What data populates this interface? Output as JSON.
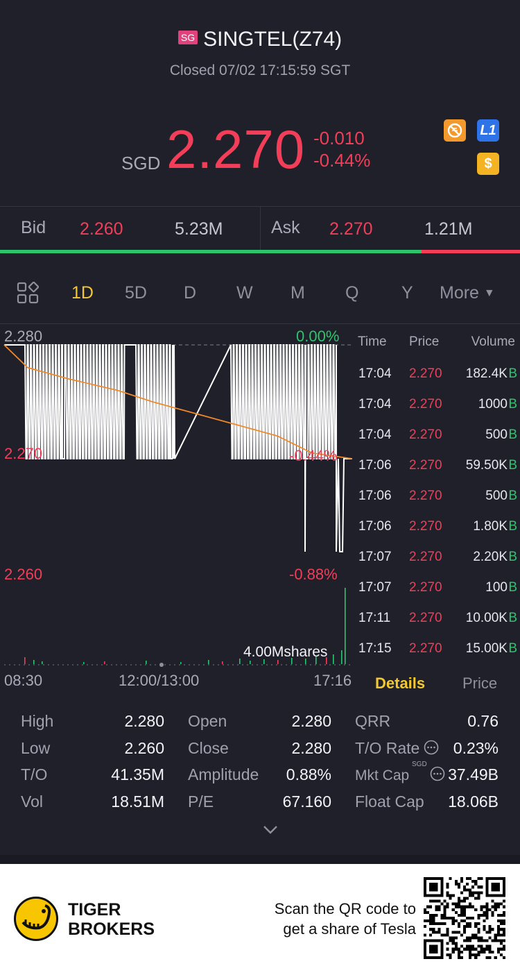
{
  "header": {
    "market_badge": "SG",
    "title": "SINGTEL(Z74)",
    "status": "Closed 07/02 17:15:59 SGT"
  },
  "quote": {
    "currency": "SGD",
    "last_price": "2.270",
    "change_abs": "-0.010",
    "change_pct": "-0.44%",
    "icons": [
      "no-trading-icon",
      "level1-icon",
      "dollar-icon"
    ]
  },
  "bid_ask": {
    "bid_label": "Bid",
    "bid_price": "2.260",
    "bid_volume": "5.23M",
    "ask_label": "Ask",
    "ask_price": "2.270",
    "ask_volume": "1.21M",
    "bid_share": 0.81
  },
  "tabs": {
    "items": [
      "1D",
      "5D",
      "D",
      "W",
      "M",
      "Q",
      "Y"
    ],
    "more": "More",
    "active": "1D"
  },
  "chart": {
    "price_labels": {
      "top": "2.280",
      "mid": "2.270",
      "bottom": "2.260"
    },
    "pct_labels": {
      "top": "0.00%",
      "mid": "-0.44%",
      "bottom": "-0.88%"
    },
    "volume_label": "4.00Mshares",
    "time_labels": {
      "start": "08:30",
      "mid": "12:00/13:00",
      "end": "17:16"
    }
  },
  "chart_data": {
    "type": "line",
    "title": "",
    "ylim": [
      2.26,
      2.28
    ],
    "series": [
      {
        "name": "",
        "values": [
          2.28,
          2.278,
          2.277,
          2.276,
          2.275,
          2.274,
          2.273,
          2.272,
          2.2705,
          2.27
        ]
      }
    ]
  },
  "trades": {
    "headers": {
      "time": "Time",
      "price": "Price",
      "volume": "Volume"
    },
    "rows": [
      {
        "time": "17:04",
        "price": "2.270",
        "volume": "182.4K",
        "side": "B"
      },
      {
        "time": "17:04",
        "price": "2.270",
        "volume": "1000",
        "side": "B"
      },
      {
        "time": "17:04",
        "price": "2.270",
        "volume": "500",
        "side": "B"
      },
      {
        "time": "17:06",
        "price": "2.270",
        "volume": "59.50K",
        "side": "B"
      },
      {
        "time": "17:06",
        "price": "2.270",
        "volume": "500",
        "side": "B"
      },
      {
        "time": "17:06",
        "price": "2.270",
        "volume": "1.80K",
        "side": "B"
      },
      {
        "time": "17:07",
        "price": "2.270",
        "volume": "2.20K",
        "side": "B"
      },
      {
        "time": "17:07",
        "price": "2.270",
        "volume": "100",
        "side": "B"
      },
      {
        "time": "17:11",
        "price": "2.270",
        "volume": "10.00K",
        "side": "B"
      },
      {
        "time": "17:15",
        "price": "2.270",
        "volume": "15.00K",
        "side": "B"
      }
    ]
  },
  "detail_tabs": {
    "details": "Details",
    "price": "Price"
  },
  "stats": {
    "col1": [
      {
        "label": "High",
        "value": "2.280"
      },
      {
        "label": "Low",
        "value": "2.260"
      },
      {
        "label": "T/O",
        "value": "41.35M"
      },
      {
        "label": "Vol",
        "value": "18.51M"
      }
    ],
    "col2": [
      {
        "label": "Open",
        "value": "2.280"
      },
      {
        "label": "Close",
        "value": "2.280"
      },
      {
        "label": "Amplitude",
        "value": "0.88%"
      },
      {
        "label": "P/E",
        "value": "67.160"
      }
    ],
    "col3": [
      {
        "label": "QRR",
        "value": "0.76"
      },
      {
        "label": "T/O Rate",
        "value": "0.23%"
      },
      {
        "label": "Mkt Cap",
        "value": "37.49B",
        "superscript": "SGD"
      },
      {
        "label": "Float Cap",
        "value": "18.06B"
      }
    ]
  },
  "banner": {
    "brand_line1": "TIGER",
    "brand_line2": "BROKERS",
    "scan_line1": "Scan the QR code to",
    "scan_line2": "get a share of Tesla"
  },
  "colors": {
    "background": "#1f2029",
    "down_red": "#f23e58",
    "up_green": "#2ec46e",
    "accent_yellow": "#f2c832",
    "avg_line_orange": "#f0882a"
  }
}
